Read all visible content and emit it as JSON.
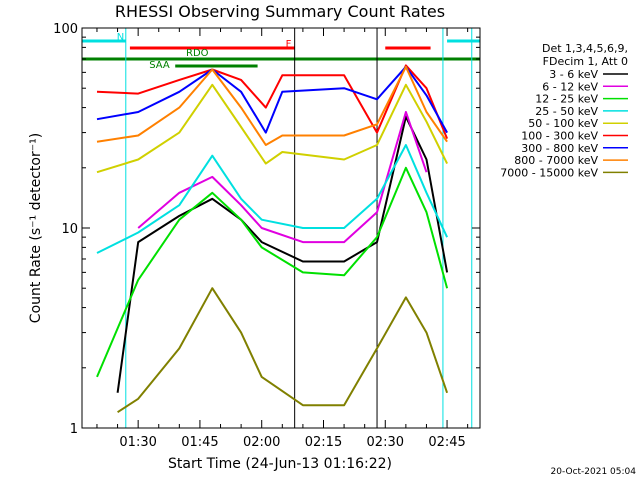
{
  "chart_data": {
    "type": "line",
    "title": "RHESSI Observing Summary Count Rates",
    "xlabel": "Start Time (24-Jun-13 01:16:22)",
    "ylabel": "Count Rate (s⁻¹ detector⁻¹)",
    "y_scale": "log",
    "ylim": [
      1,
      100
    ],
    "xlim": [
      "01:16:22",
      "02:53:00"
    ],
    "x_ticks": [
      "01:30",
      "01:45",
      "02:00",
      "02:15",
      "02:30",
      "02:45"
    ],
    "y_ticks": [
      "1",
      "10",
      "100"
    ],
    "grid": false,
    "legend_position": "right",
    "legend_header": [
      "Det 1,3,4,5,6,9,",
      "FDecim 1, Att 0"
    ],
    "series": [
      {
        "name": "3 - 6 keV",
        "color": "#000000",
        "x": [
          "01:25",
          "01:30",
          "01:40",
          "01:48",
          "01:55",
          "02:00",
          "02:10",
          "02:20",
          "02:28",
          "02:35",
          "02:40",
          "02:45"
        ],
        "y": [
          1.5,
          8.5,
          11.5,
          14,
          11,
          8.5,
          6.8,
          6.8,
          8.5,
          36,
          22,
          6
        ]
      },
      {
        "name": "6 - 12 keV",
        "color": "#e000e0",
        "x": [
          "01:30",
          "01:40",
          "01:48",
          "01:55",
          "02:00",
          "02:10",
          "02:20",
          "02:28",
          "02:35",
          "02:40"
        ],
        "y": [
          10,
          15,
          18,
          13,
          10,
          8.5,
          8.5,
          12,
          38,
          19
        ]
      },
      {
        "name": "12 - 25 keV",
        "color": "#00e000",
        "x": [
          "01:20",
          "01:30",
          "01:40",
          "01:48",
          "01:55",
          "02:00",
          "02:10",
          "02:20",
          "02:28",
          "02:35",
          "02:40",
          "02:45"
        ],
        "y": [
          1.8,
          5.5,
          11,
          15,
          11,
          8,
          6,
          5.8,
          9,
          20,
          12,
          5
        ]
      },
      {
        "name": "25 - 50 keV",
        "color": "#00e0e0",
        "x": [
          "01:20",
          "01:30",
          "01:40",
          "01:48",
          "01:55",
          "02:00",
          "02:10",
          "02:20",
          "02:28",
          "02:35",
          "02:40",
          "02:45"
        ],
        "y": [
          7.5,
          9.5,
          13,
          23,
          14,
          11,
          10,
          10,
          14,
          26,
          15,
          9
        ]
      },
      {
        "name": "50 - 100 keV",
        "color": "#d0d000",
        "x": [
          "01:20",
          "01:30",
          "01:40",
          "01:48",
          "01:55",
          "02:01",
          "02:05",
          "02:20",
          "02:28",
          "02:35",
          "02:40",
          "02:45"
        ],
        "y": [
          19,
          22,
          30,
          52,
          32,
          21,
          24,
          22,
          26,
          52,
          34,
          21
        ]
      },
      {
        "name": "100 - 300 keV",
        "color": "#ff0000",
        "x": [
          "01:20",
          "01:30",
          "01:40",
          "01:48",
          "01:55",
          "02:01",
          "02:05",
          "02:20",
          "02:28",
          "02:35",
          "02:40",
          "02:45"
        ],
        "y": [
          48,
          47,
          55,
          62,
          55,
          40,
          58,
          58,
          30,
          65,
          50,
          28
        ]
      },
      {
        "name": "300 - 800 keV",
        "color": "#0000ff",
        "x": [
          "01:20",
          "01:30",
          "01:40",
          "01:48",
          "01:55",
          "02:01",
          "02:05",
          "02:20",
          "02:28",
          "02:35",
          "02:40",
          "02:45"
        ],
        "y": [
          35,
          38,
          48,
          62,
          48,
          30,
          48,
          50,
          44,
          64,
          46,
          30
        ]
      },
      {
        "name": "800 - 7000 keV",
        "color": "#ff8000",
        "x": [
          "01:20",
          "01:30",
          "01:40",
          "01:48",
          "01:55",
          "02:01",
          "02:05",
          "02:20",
          "02:28",
          "02:35",
          "02:40",
          "02:45"
        ],
        "y": [
          27,
          29,
          40,
          62,
          40,
          26,
          29,
          29,
          33,
          64,
          38,
          27
        ]
      },
      {
        "name": "7000 - 15000 keV",
        "color": "#808000",
        "x": [
          "01:25",
          "01:30",
          "01:40",
          "01:48",
          "01:55",
          "02:00",
          "02:10",
          "02:20",
          "02:28",
          "02:35",
          "02:40",
          "02:45"
        ],
        "y": [
          1.2,
          1.4,
          2.5,
          5,
          3,
          1.8,
          1.3,
          1.3,
          2.5,
          4.5,
          3,
          1.5
        ]
      }
    ],
    "flag_bars": [
      {
        "label": "N",
        "color": "#00e0e0",
        "segments": [
          [
            "01:16:22",
            "01:27"
          ],
          [
            "02:45",
            "02:53"
          ]
        ]
      },
      {
        "label": "F",
        "color": "#ff0000",
        "segments": [
          [
            "01:28",
            "02:08"
          ],
          [
            "02:30",
            "02:41"
          ]
        ]
      },
      {
        "label": "RDO",
        "color": "#008000",
        "segments": [
          [
            "01:16:22",
            "02:53"
          ]
        ]
      },
      {
        "label": "SAA",
        "color": "#008000",
        "segments": [
          [
            "01:39",
            "01:59"
          ]
        ]
      }
    ],
    "vertical_markers": [
      {
        "color": "#00e0e0",
        "x": [
          "01:27",
          "02:44",
          "02:51"
        ]
      },
      {
        "color": "#000000",
        "x": [
          "02:08",
          "02:28"
        ]
      }
    ]
  },
  "footer_date": "20-Oct-2021 05:04"
}
